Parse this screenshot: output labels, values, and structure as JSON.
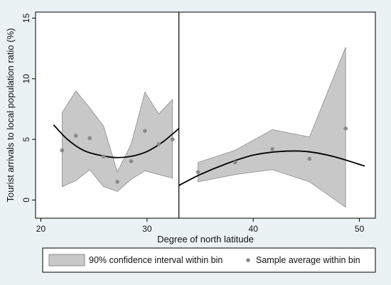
{
  "chart_data": {
    "type": "scatter",
    "xlabel": "Degree of north latitude",
    "ylabel": "Tourist arrivals to local population ratio (%)",
    "xlim": [
      19.5,
      51.5
    ],
    "ylim": [
      -1.5,
      15.5
    ],
    "x_ticks": [
      20,
      30,
      40,
      50
    ],
    "y_ticks": [
      0,
      5,
      10,
      15
    ],
    "x_tick_labels": [
      "20",
      "30",
      "40",
      "50"
    ],
    "y_tick_labels": [
      "0",
      "5",
      "10",
      "15"
    ],
    "cutoff": 33,
    "grid": false,
    "legend_position": "bottom",
    "colors": {
      "band": "#c8c8c8",
      "band_edge": "#8c8c8c",
      "points": "#8a8a8a",
      "fit": "#000000",
      "plot_bg": "#ffffff",
      "page_bg": "#eaf2f3"
    },
    "series": [
      {
        "name": "90% confidence interval within bin",
        "kind": "band",
        "segments": [
          {
            "x": [
              22.0,
              23.3,
              24.6,
              25.9,
              27.2,
              28.5,
              29.8,
              31.1,
              32.4
            ],
            "upper": [
              7.2,
              9.0,
              7.6,
              6.1,
              2.3,
              4.6,
              8.9,
              7.1,
              8.3
            ],
            "lower": [
              1.1,
              1.6,
              2.5,
              1.1,
              0.7,
              1.7,
              2.4,
              2.1,
              1.8
            ]
          },
          {
            "x": [
              34.8,
              38.3,
              41.8,
              45.3,
              48.7
            ],
            "upper": [
              3.1,
              4.1,
              5.8,
              5.2,
              12.6
            ],
            "lower": [
              1.5,
              2.1,
              2.5,
              1.5,
              -0.6
            ]
          }
        ]
      },
      {
        "name": "Sample average within bin",
        "kind": "points",
        "x": [
          22.0,
          23.3,
          24.6,
          25.9,
          27.2,
          28.5,
          29.8,
          31.1,
          32.4,
          34.8,
          38.3,
          41.8,
          45.3,
          48.7
        ],
        "y": [
          4.1,
          5.3,
          5.1,
          3.6,
          1.5,
          3.2,
          5.7,
          4.6,
          5.0,
          2.3,
          3.1,
          4.2,
          3.4,
          5.9
        ]
      },
      {
        "kind": "fit",
        "segments": [
          {
            "x": [
              21.2,
              22.5,
              24.0,
              25.5,
              27.0,
              28.5,
              30.0,
              31.5,
              33.0
            ],
            "y": [
              6.2,
              5.0,
              4.1,
              3.7,
              3.5,
              3.6,
              4.0,
              4.8,
              5.9
            ]
          },
          {
            "x": [
              33.0,
              35.0,
              37.5,
              40.0,
              42.5,
              45.0,
              47.5,
              50.5
            ],
            "y": [
              1.2,
              2.1,
              3.0,
              3.7,
              4.0,
              4.0,
              3.6,
              2.8
            ]
          }
        ]
      }
    ],
    "legend": [
      {
        "label": "90% confidence interval within bin",
        "marker": "band"
      },
      {
        "label": "Sample average within bin",
        "marker": "point"
      }
    ]
  }
}
